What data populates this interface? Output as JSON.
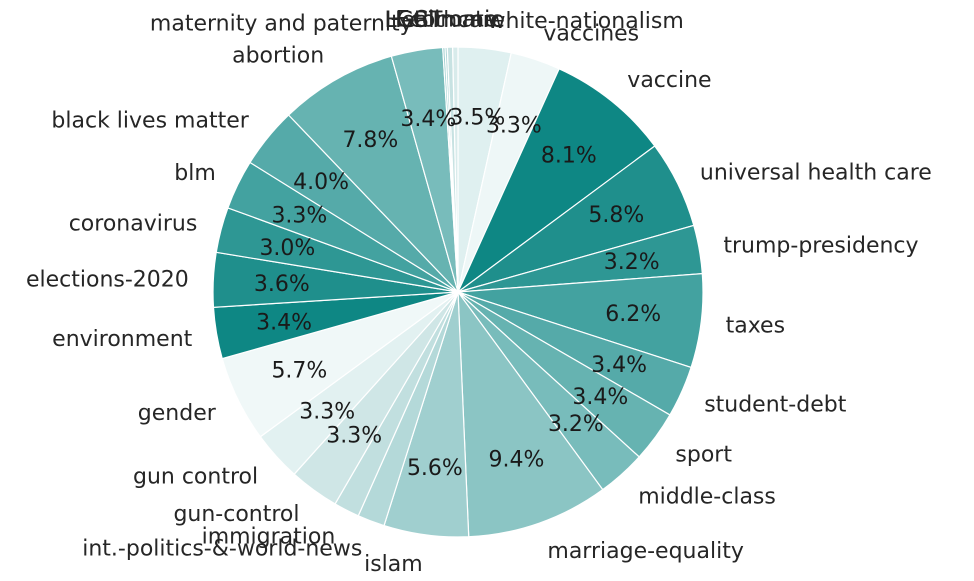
{
  "chart_data": {
    "type": "pie",
    "categories": [
      "white-nationalism",
      "vaccines",
      "vaccine",
      "universal health care",
      "trump-presidency",
      "taxes",
      "student-debt",
      "sport",
      "middle-class",
      "marriage-equality",
      "islam",
      "int.-politics-&-world-news",
      "immigration",
      "gun-control",
      "gun control",
      "gender",
      "environment",
      "elections-2020",
      "coronavirus",
      "blm",
      "black lives matter",
      "abortion",
      "maternity and paternity",
      "LGBT",
      "Healthcare",
      "Economic",
      "Climate"
    ],
    "values": [
      3.5,
      3.3,
      8.1,
      5.8,
      3.2,
      6.2,
      3.4,
      3.4,
      3.2,
      9.4,
      5.6,
      1.8,
      1.7,
      3.3,
      3.3,
      5.7,
      3.4,
      3.6,
      3.0,
      3.3,
      4.0,
      7.8,
      3.4,
      0.15,
      0.15,
      0.35,
      0.35
    ],
    "data_labels": [
      "3.5%",
      "3.3%",
      "8.1%",
      "5.8%",
      "3.2%",
      "6.2%",
      "3.4%",
      "3.4%",
      "3.2%",
      "9.4%",
      "5.6%",
      "",
      "",
      "3.3%",
      "3.3%",
      "5.7%",
      "3.4%",
      "3.6%",
      "3.0%",
      "3.3%",
      "4.0%",
      "7.8%",
      "3.4%",
      "",
      "",
      "",
      ""
    ],
    "colors": [
      "#dff0f0",
      "#eef7f7",
      "#0e8784",
      "#1f8f8c",
      "#2e9794",
      "#43a2a0",
      "#55aaa9",
      "#66b3b1",
      "#78bcbb",
      "#8bc5c4",
      "#a0cfcf",
      "#b4d9d9",
      "#c1dfdf",
      "#cfe6e6",
      "#e2f1f1",
      "#f0f8f8",
      "#0e8784",
      "#1f8f8c",
      "#2e9794",
      "#43a2a0",
      "#55aaa9",
      "#66b3b1",
      "#78bcbb",
      "#a0cfcf",
      "#b4d9d9",
      "#c7e2e2",
      "#d8ebeb"
    ],
    "start_angle_deg": 90,
    "direction": "clockwise",
    "legend": "none"
  }
}
